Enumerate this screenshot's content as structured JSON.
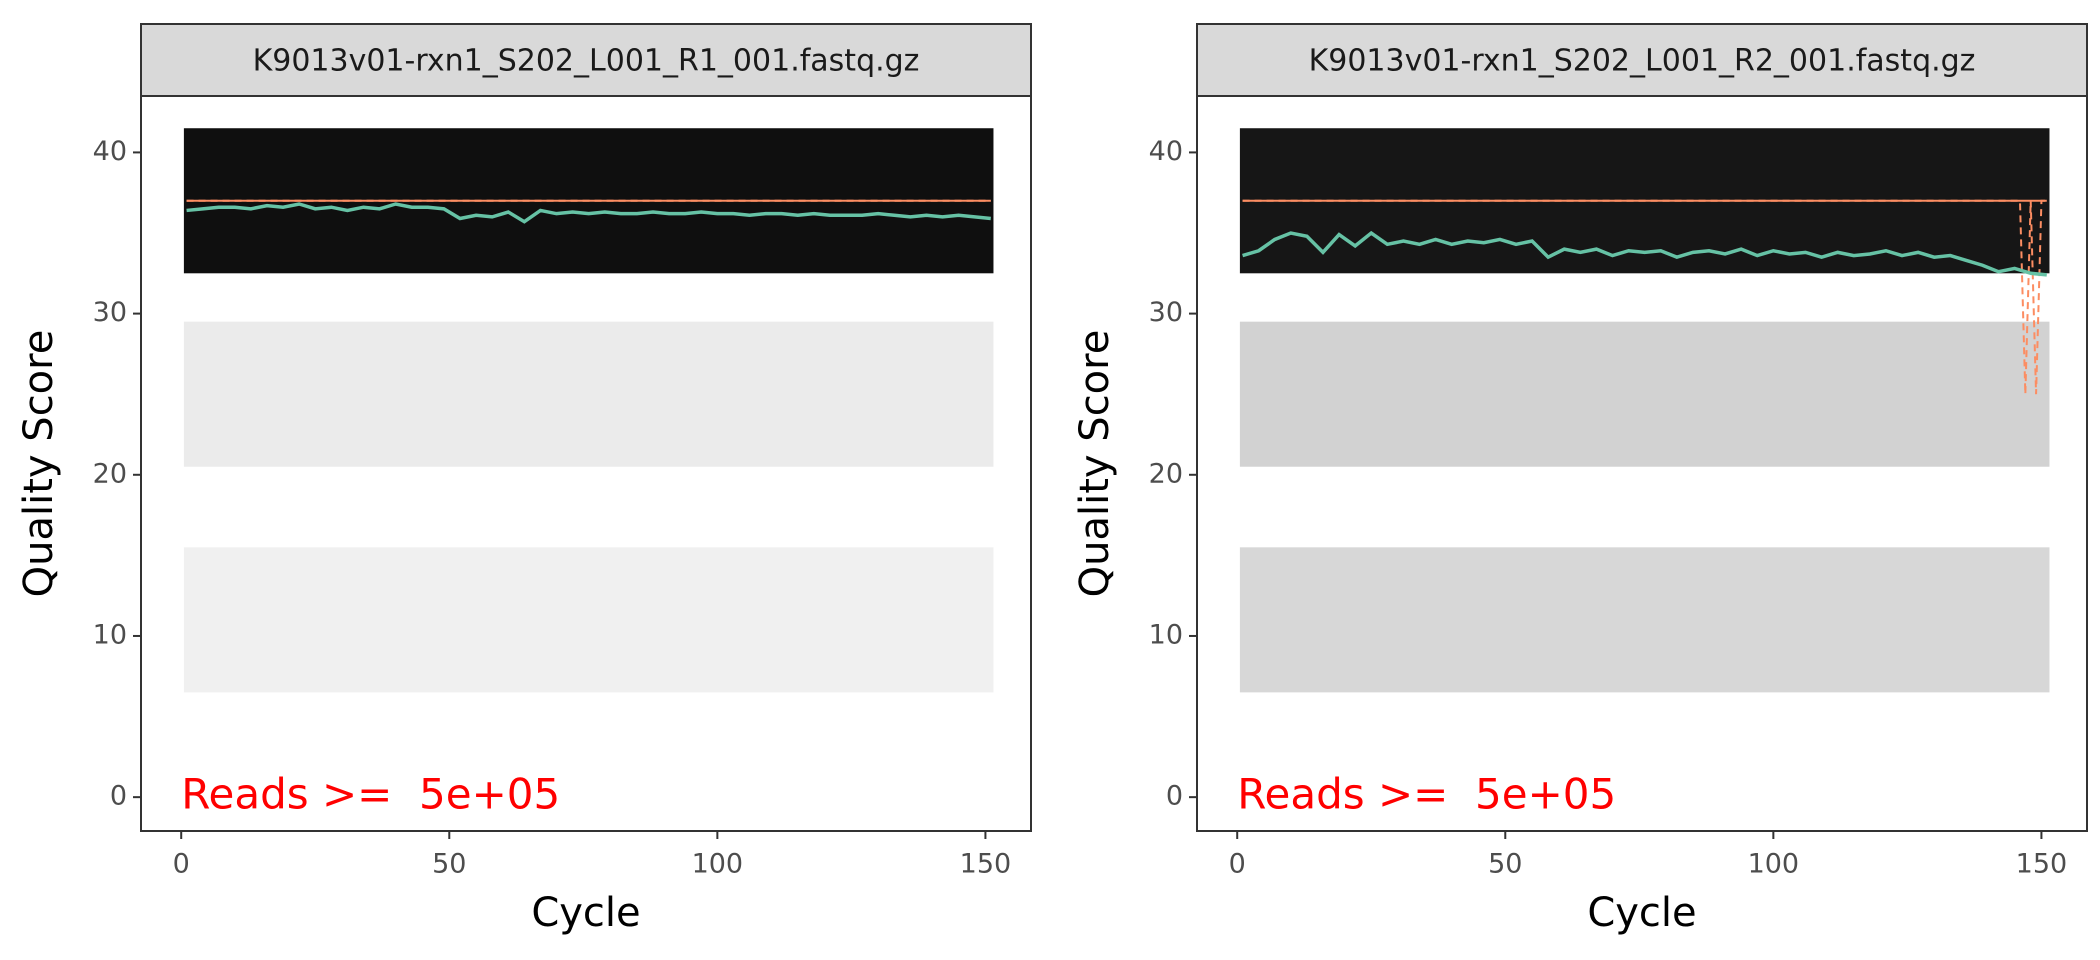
{
  "chart_data": [
    {
      "type": "line",
      "title": "K9013v01-rxn1_S202_L001_R1_001.fastq.gz",
      "x_label": "Cycle",
      "y_label": "Quality Score",
      "annotation": "Reads >=  5e+05",
      "xlim": [
        -7.5,
        158.5
      ],
      "ylim": [
        -2.1,
        43.5
      ],
      "xticks": [
        0,
        50,
        100,
        150
      ],
      "yticks": [
        0,
        10,
        20,
        30,
        40
      ],
      "bands": [
        {
          "q": 37,
          "color": "#0f0f0f"
        },
        {
          "q": 25,
          "color": "#ebebeb"
        },
        {
          "q": 11,
          "color": "#f0f0f0"
        }
      ],
      "mean": {
        "color": "#66c2a5",
        "x": [
          1,
          4,
          7,
          10,
          13,
          16,
          19,
          22,
          25,
          28,
          31,
          34,
          37,
          40,
          43,
          46,
          49,
          52,
          55,
          58,
          61,
          64,
          67,
          70,
          73,
          76,
          79,
          82,
          85,
          88,
          91,
          94,
          97,
          100,
          103,
          106,
          109,
          112,
          115,
          118,
          121,
          124,
          127,
          130,
          133,
          136,
          139,
          142,
          145,
          148,
          151
        ],
        "values": [
          36.4,
          36.5,
          36.6,
          36.6,
          36.5,
          36.7,
          36.6,
          36.8,
          36.5,
          36.6,
          36.4,
          36.6,
          36.5,
          36.8,
          36.6,
          36.6,
          36.5,
          35.9,
          36.1,
          36.0,
          36.3,
          35.7,
          36.4,
          36.2,
          36.3,
          36.2,
          36.3,
          36.2,
          36.2,
          36.3,
          36.2,
          36.2,
          36.3,
          36.2,
          36.2,
          36.1,
          36.2,
          36.2,
          36.1,
          36.2,
          36.1,
          36.1,
          36.1,
          36.2,
          36.1,
          36.0,
          36.1,
          36.0,
          36.1,
          36.0,
          35.9
        ]
      },
      "median": {
        "color": "#fc8d62",
        "x": [
          1,
          151
        ],
        "values": [
          37,
          37
        ]
      },
      "q25": {
        "color": "#fc8d62",
        "x": [
          1,
          151
        ],
        "values": [
          37,
          37
        ]
      }
    },
    {
      "type": "line",
      "title": "K9013v01-rxn1_S202_L001_R2_001.fastq.gz",
      "x_label": "Cycle",
      "y_label": "Quality Score",
      "annotation": "Reads >=  5e+05",
      "xlim": [
        -7.5,
        158.5
      ],
      "ylim": [
        -2.1,
        43.5
      ],
      "xticks": [
        0,
        50,
        100,
        150
      ],
      "yticks": [
        0,
        10,
        20,
        30,
        40
      ],
      "bands": [
        {
          "q": 37,
          "color": "#161616"
        },
        {
          "q": 25,
          "color": "#d2d2d2"
        },
        {
          "q": 11,
          "color": "#d7d7d7"
        }
      ],
      "mean": {
        "color": "#66c2a5",
        "x": [
          1,
          4,
          7,
          10,
          13,
          16,
          19,
          22,
          25,
          28,
          31,
          34,
          37,
          40,
          43,
          46,
          49,
          52,
          55,
          58,
          61,
          64,
          67,
          70,
          73,
          76,
          79,
          82,
          85,
          88,
          91,
          94,
          97,
          100,
          103,
          106,
          109,
          112,
          115,
          118,
          121,
          124,
          127,
          130,
          133,
          136,
          139,
          142,
          145,
          148,
          151
        ],
        "values": [
          33.6,
          33.9,
          34.6,
          35.0,
          34.8,
          33.8,
          34.9,
          34.2,
          35.0,
          34.3,
          34.5,
          34.3,
          34.6,
          34.3,
          34.5,
          34.4,
          34.6,
          34.3,
          34.5,
          33.5,
          34.0,
          33.8,
          34.0,
          33.6,
          33.9,
          33.8,
          33.9,
          33.5,
          33.8,
          33.9,
          33.7,
          34.0,
          33.6,
          33.9,
          33.7,
          33.8,
          33.5,
          33.8,
          33.6,
          33.7,
          33.9,
          33.6,
          33.8,
          33.5,
          33.6,
          33.3,
          33.0,
          32.6,
          32.8,
          32.5,
          32.4
        ]
      },
      "median": {
        "color": "#fc8d62",
        "x": [
          1,
          151
        ],
        "values": [
          37,
          37
        ]
      },
      "q25": {
        "color": "#fc8d62",
        "x": [
          1,
          146,
          147,
          148,
          149,
          150,
          151
        ],
        "values": [
          37,
          37,
          25,
          37,
          25,
          37,
          37
        ]
      }
    }
  ]
}
